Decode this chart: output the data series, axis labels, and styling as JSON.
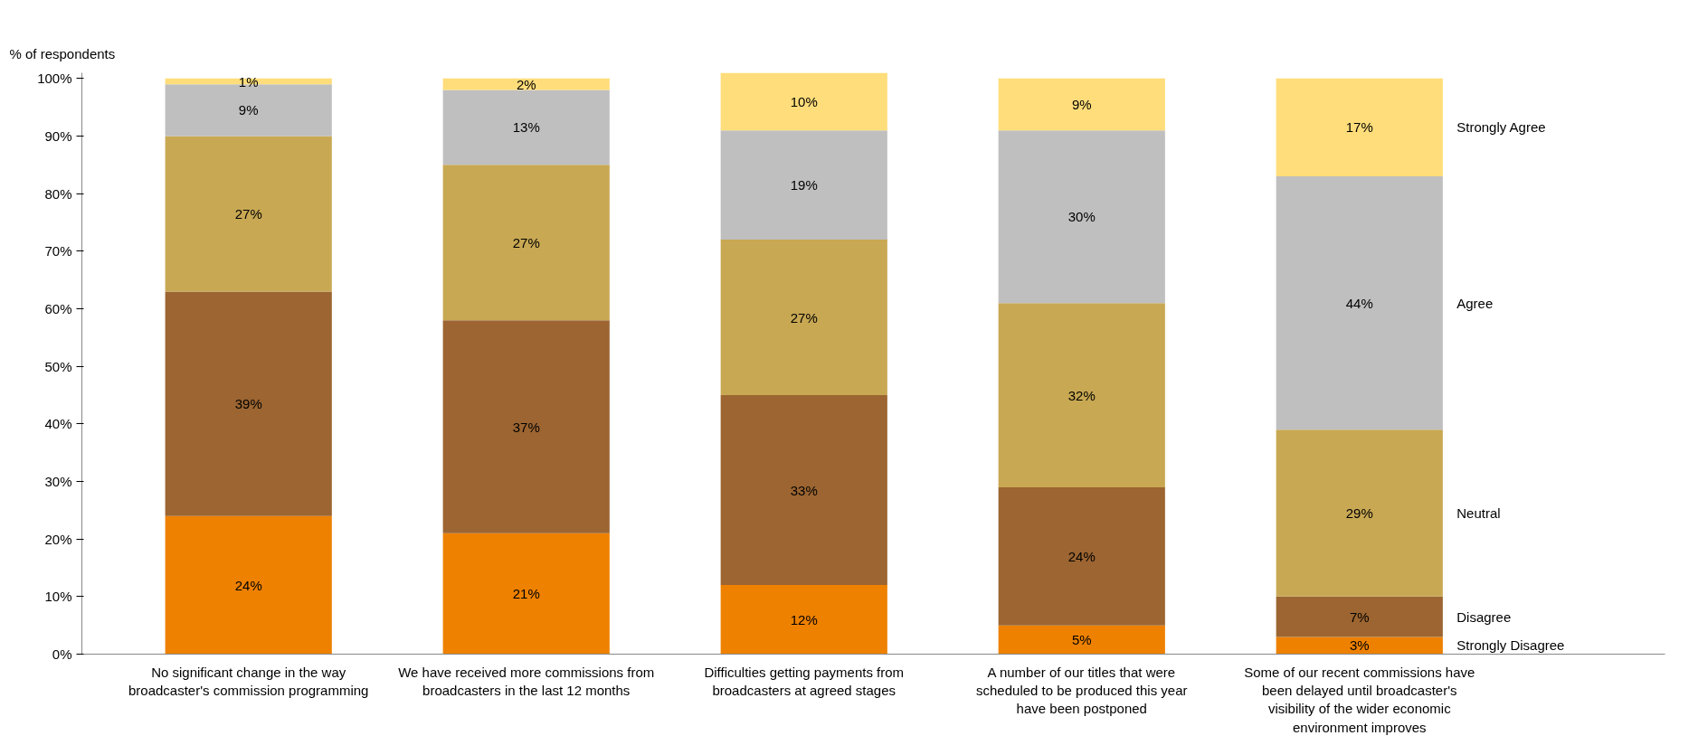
{
  "chart_data": {
    "type": "bar",
    "stacked": true,
    "ylabel": "% of respondents",
    "categories": [
      "No significant change in the way broadcaster's commission programming",
      "We have received more commissions from broadcasters in the last 12 months",
      "Difficulties getting payments from broadcasters at agreed stages",
      "A number of our titles that were scheduled to be produced this year have been postponed",
      "Some of our recent commissions have been delayed until broadcaster's visibility of the wider economic environment improves"
    ],
    "series": [
      {
        "name": "Strongly Disagree",
        "color": "#ee8100",
        "values": [
          24,
          21,
          12,
          5,
          3
        ],
        "value_labels": [
          "24%",
          "21%",
          "12%",
          "5%",
          "3%"
        ]
      },
      {
        "name": "Disagree",
        "color": "#9c6531",
        "values": [
          39,
          37,
          33,
          24,
          7
        ],
        "value_labels": [
          "39%",
          "37%",
          "33%",
          "24%",
          "7%"
        ]
      },
      {
        "name": "Neutral",
        "color": "#c8a853",
        "values": [
          27,
          27,
          27,
          32,
          29
        ],
        "value_labels": [
          "27%",
          "27%",
          "27%",
          "32%",
          "29%"
        ]
      },
      {
        "name": "Agree",
        "color": "#bfbfbf",
        "values": [
          9,
          13,
          19,
          30,
          44
        ],
        "value_labels": [
          "9%",
          "13%",
          "19%",
          "30%",
          "44%"
        ]
      },
      {
        "name": "Strongly Agree",
        "color": "#ffdd7a",
        "values": [
          1,
          2,
          10,
          9,
          17
        ],
        "value_labels": [
          "1%",
          "2%",
          "10%",
          "9%",
          "17%"
        ]
      }
    ],
    "ylim": [
      0,
      101
    ],
    "yticks": [
      {
        "value": 0,
        "label": "0%"
      },
      {
        "value": 10,
        "label": "10%"
      },
      {
        "value": 20,
        "label": "20%"
      },
      {
        "value": 30,
        "label": "30%"
      },
      {
        "value": 40,
        "label": "40%"
      },
      {
        "value": 50,
        "label": "50%"
      },
      {
        "value": 60,
        "label": "60%"
      },
      {
        "value": 70,
        "label": "70%"
      },
      {
        "value": 80,
        "label": "80%"
      },
      {
        "value": 90,
        "label": "90%"
      },
      {
        "value": 100,
        "label": "100%"
      }
    ],
    "grid": false,
    "legend": false
  }
}
